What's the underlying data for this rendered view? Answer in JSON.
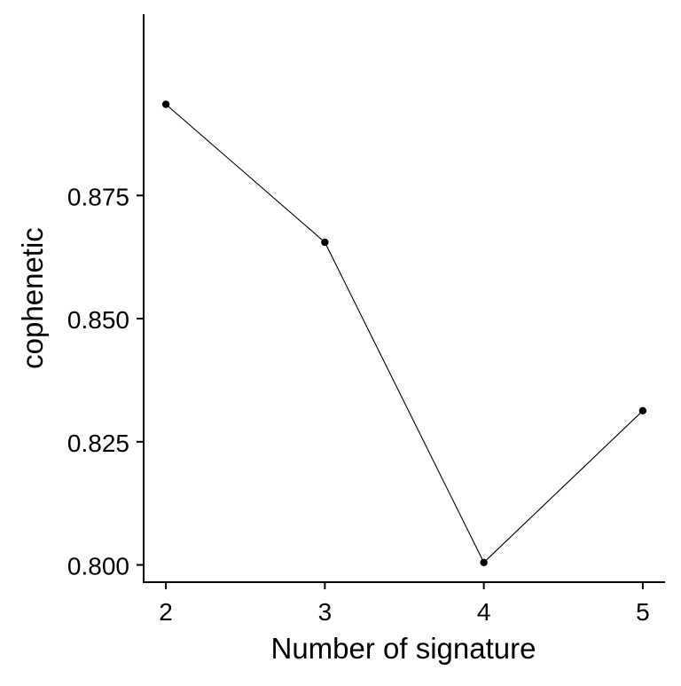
{
  "chart_data": {
    "type": "line",
    "title": "",
    "xlabel": "Number of signature",
    "ylabel": "cophenetic",
    "x": [
      2,
      3,
      4,
      5
    ],
    "y": [
      0.8935,
      0.8655,
      0.8005,
      0.8313
    ],
    "x_ticks": [
      "2",
      "3",
      "4",
      "5"
    ],
    "y_ticks": [
      "0.800",
      "0.825",
      "0.850",
      "0.875"
    ],
    "y_tick_values": [
      0.8,
      0.825,
      0.85,
      0.875
    ],
    "xlim": [
      1.86,
      5.14
    ],
    "ylim": [
      0.7965,
      0.9118
    ],
    "grid": false,
    "line_color": "#000000",
    "point_color": "#000000"
  }
}
